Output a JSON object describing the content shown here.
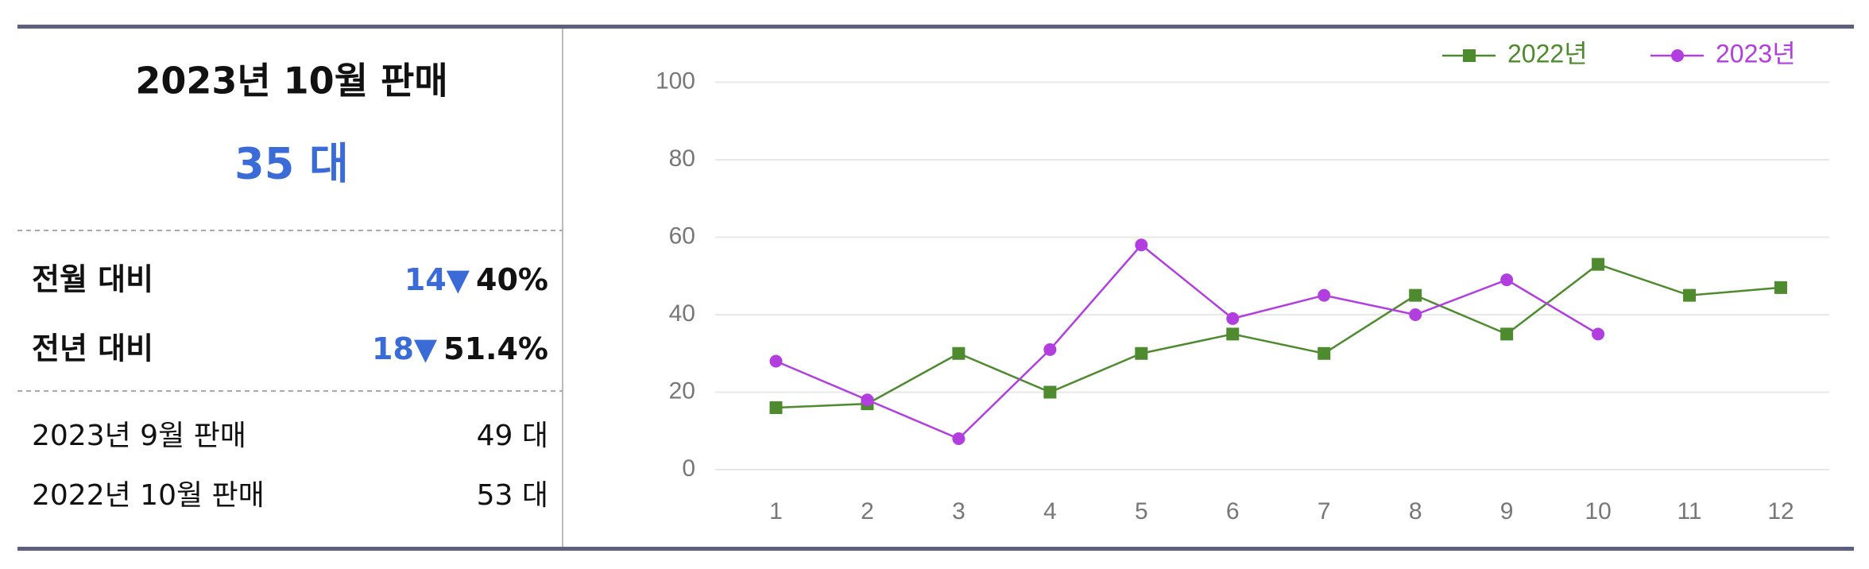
{
  "summary": {
    "title": "2023년 10월 판매",
    "total": "35 대",
    "month_compare": {
      "label": "전월 대비",
      "change": "14",
      "arrow": "▼",
      "percent": "40%"
    },
    "year_compare": {
      "label": "전년 대비",
      "change": "18",
      "arrow": "▼",
      "percent": "51.4%"
    },
    "prev_month": {
      "label": "2023년 9월 판매",
      "value": "49 대"
    },
    "prev_year": {
      "label": "2022년 10월 판매",
      "value": "53 대"
    }
  },
  "chart_data": {
    "type": "line",
    "categories": [
      "1",
      "2",
      "3",
      "4",
      "5",
      "6",
      "7",
      "8",
      "9",
      "10",
      "11",
      "12"
    ],
    "series": [
      {
        "name": "2022년",
        "color": "#4e8a2e",
        "marker": "square",
        "values": [
          16,
          17,
          30,
          20,
          30,
          35,
          30,
          45,
          35,
          53,
          45,
          47
        ]
      },
      {
        "name": "2023년",
        "color": "#b23ee0",
        "marker": "circle",
        "values": [
          28,
          18,
          8,
          31,
          58,
          39,
          45,
          40,
          49,
          35,
          null,
          null
        ]
      }
    ],
    "ylim": [
      0,
      100
    ],
    "yticks": [
      0,
      20,
      40,
      60,
      80,
      100
    ],
    "grid": true,
    "legend": "top-right"
  }
}
